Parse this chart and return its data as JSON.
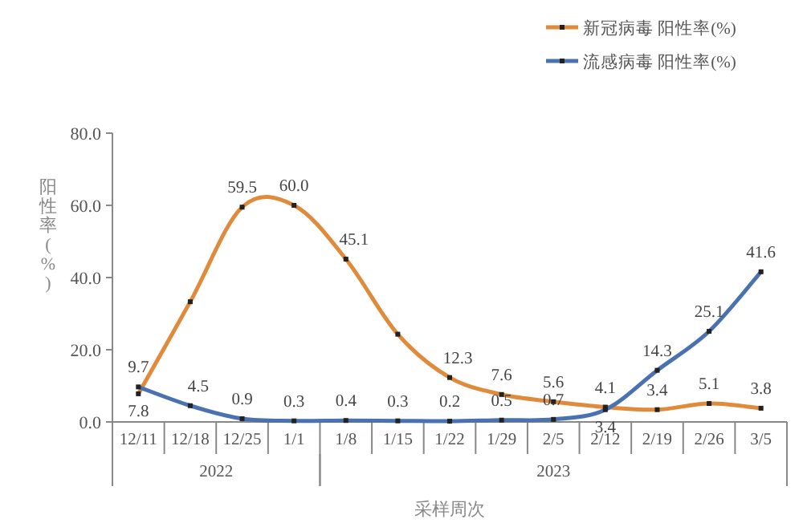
{
  "chart_data": {
    "type": "line",
    "xlabel": "采样周次",
    "ylabel": "阳性率(%)",
    "categories": [
      "12/11",
      "12/18",
      "12/25",
      "1/1",
      "1/8",
      "1/15",
      "1/22",
      "1/29",
      "2/5",
      "2/12",
      "2/19",
      "2/26",
      "3/5"
    ],
    "series": [
      {
        "name": "新冠病毒 阳性率(%)",
        "color": "#e08a3c",
        "values": [
          7.8,
          33.3,
          59.5,
          60.0,
          45.1,
          24.3,
          12.3,
          7.6,
          5.6,
          4.1,
          3.4,
          5.1,
          3.8
        ],
        "value_labels": [
          "7.8",
          null,
          "59.5",
          "60.0",
          "45.1",
          null,
          "12.3",
          "7.6",
          "5.6",
          "4.1",
          "3.4",
          "5.1",
          "3.8"
        ]
      },
      {
        "name": "流感病毒 阳性率(%)",
        "color": "#4a72b0",
        "values": [
          9.7,
          4.5,
          0.9,
          0.3,
          0.4,
          0.3,
          0.2,
          0.5,
          0.7,
          3.4,
          14.3,
          25.1,
          41.6
        ],
        "value_labels": [
          "9.7",
          "4.5",
          "0.9",
          "0.3",
          "0.4",
          "0.3",
          "0.2",
          "0.5",
          "0.7",
          "3.4",
          "14.3",
          "25.1",
          "41.6"
        ]
      }
    ],
    "ylim": [
      0,
      80
    ],
    "yticks": [
      {
        "value": 0,
        "label": "0.0"
      },
      {
        "value": 20,
        "label": "20.0"
      },
      {
        "value": 40,
        "label": "40.0"
      },
      {
        "value": 60,
        "label": "60.0"
      },
      {
        "value": 80,
        "label": "80.0"
      }
    ],
    "annotations": [
      "2022",
      "2023"
    ],
    "legend": "top right",
    "marker": "square",
    "line_style": "solid",
    "grid": false
  }
}
